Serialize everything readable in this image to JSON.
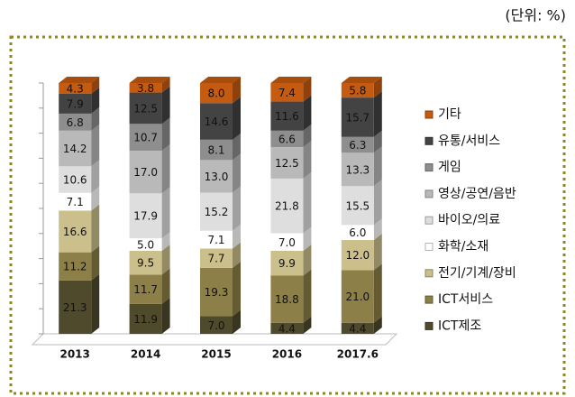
{
  "chart_data": {
    "type": "stacked_bar_3d",
    "unit_note": "(단위: %)",
    "categories": [
      "2013",
      "2014",
      "2015",
      "2016",
      "2017.6"
    ],
    "series": [
      {
        "name": "ICT제조",
        "color": "#4f4a2c",
        "values": [
          21.3,
          11.9,
          7.0,
          4.4,
          4.4
        ],
        "value_labels": [
          "21.3",
          "11.9",
          "7.0",
          "4.4",
          "4.4"
        ]
      },
      {
        "name": "ICT서비스",
        "color": "#8c7f47",
        "values": [
          11.2,
          11.7,
          19.3,
          18.8,
          21.0
        ],
        "value_labels": [
          "11.2",
          "11.7",
          "19.3",
          "18.8",
          "21.0"
        ]
      },
      {
        "name": "전기/기계/장비",
        "color": "#cbbf8c",
        "values": [
          16.6,
          9.5,
          7.7,
          9.9,
          12.0
        ],
        "value_labels": [
          "16.6",
          "9.5",
          "7.7",
          "9.9",
          "12.0"
        ]
      },
      {
        "name": "화학/소재",
        "color": "#ffffff",
        "values": [
          7.1,
          5.0,
          7.1,
          7.0,
          6.0
        ],
        "value_labels": [
          "7.1",
          "5.0",
          "7.1",
          "7.0",
          "6.0"
        ]
      },
      {
        "name": "바이오/의료",
        "color": "#dedede",
        "values": [
          10.6,
          17.9,
          15.2,
          21.8,
          15.5
        ],
        "value_labels": [
          "10.6",
          "17.9",
          "15.2",
          "21.8",
          "15.5"
        ]
      },
      {
        "name": "영상/공연/음반",
        "color": "#b9b9b9",
        "values": [
          14.2,
          17.0,
          13.0,
          12.5,
          13.3
        ],
        "value_labels": [
          "14.2",
          "17.0",
          "13.0",
          "12.5",
          "13.3"
        ]
      },
      {
        "name": "게임",
        "color": "#8e8e8e",
        "values": [
          6.8,
          10.7,
          8.1,
          6.6,
          6.3
        ],
        "value_labels": [
          "6.8",
          "10.7",
          "8.1",
          "6.6",
          "6.3"
        ]
      },
      {
        "name": "유통/서비스",
        "color": "#434343",
        "values": [
          7.9,
          12.5,
          14.6,
          11.6,
          15.7
        ],
        "value_labels": [
          "7.9",
          "12.5",
          "14.6",
          "11.6",
          "15.7"
        ]
      },
      {
        "name": "기타",
        "color": "#c55a11",
        "values": [
          4.3,
          3.8,
          8.0,
          7.4,
          5.8
        ],
        "value_labels": [
          "4.3",
          "3.8",
          "8.0",
          "7.4",
          "5.8"
        ]
      }
    ],
    "ylim": [
      0,
      100
    ],
    "yticks": [
      0,
      10,
      20,
      30,
      40,
      50,
      60,
      70,
      80,
      90,
      100
    ],
    "legend": "right"
  }
}
